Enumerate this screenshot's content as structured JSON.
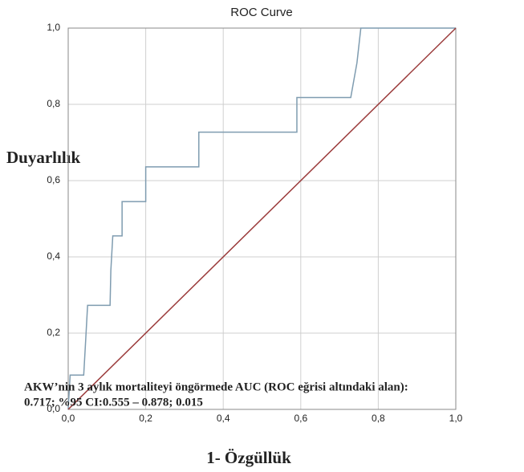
{
  "chart_data": {
    "type": "line",
    "title": "ROC Curve",
    "xlabel": "1- Özgüllük",
    "ylabel": "Duyarlılık",
    "annotations": [
      "AKW’nin 3 aylık mortaliteyi öngörmede AUC (ROC eğrisi altındaki alan):",
      "0.717; %95 CI:0.555 – 0.878; 0.015"
    ],
    "xlim": [
      0,
      1
    ],
    "ylim": [
      0,
      1
    ],
    "xticks": [
      {
        "value": 0,
        "label": "0,0"
      },
      {
        "value": 0.2,
        "label": "0,2"
      },
      {
        "value": 0.4,
        "label": "0,4"
      },
      {
        "value": 0.6,
        "label": "0,6"
      },
      {
        "value": 0.8,
        "label": "0,8"
      },
      {
        "value": 1,
        "label": "1,0"
      }
    ],
    "yticks": [
      {
        "value": 0,
        "label": "0,0"
      },
      {
        "value": 0.2,
        "label": "0,2"
      },
      {
        "value": 0.4,
        "label": "0,4"
      },
      {
        "value": 0.6,
        "label": "0,6"
      },
      {
        "value": 0.8,
        "label": "0,8"
      },
      {
        "value": 1,
        "label": "1,0"
      }
    ],
    "grid": true,
    "series": [
      {
        "color": "#7f9cb0",
        "x": [
          0,
          0.005,
          0.04,
          0.045,
          0.05,
          0.108,
          0.11,
          0.115,
          0.139,
          0.139,
          0.2,
          0.2,
          0.337,
          0.337,
          0.59,
          0.59,
          0.729,
          0.745,
          0.755,
          1
        ],
        "values": [
          0,
          0.09,
          0.09,
          0.18,
          0.273,
          0.273,
          0.364,
          0.455,
          0.455,
          0.545,
          0.545,
          0.636,
          0.636,
          0.727,
          0.727,
          0.818,
          0.818,
          0.909,
          1,
          1
        ]
      },
      {
        "color": "#9b3b3b",
        "x": [
          0,
          1
        ],
        "values": [
          0,
          1
        ]
      }
    ]
  }
}
